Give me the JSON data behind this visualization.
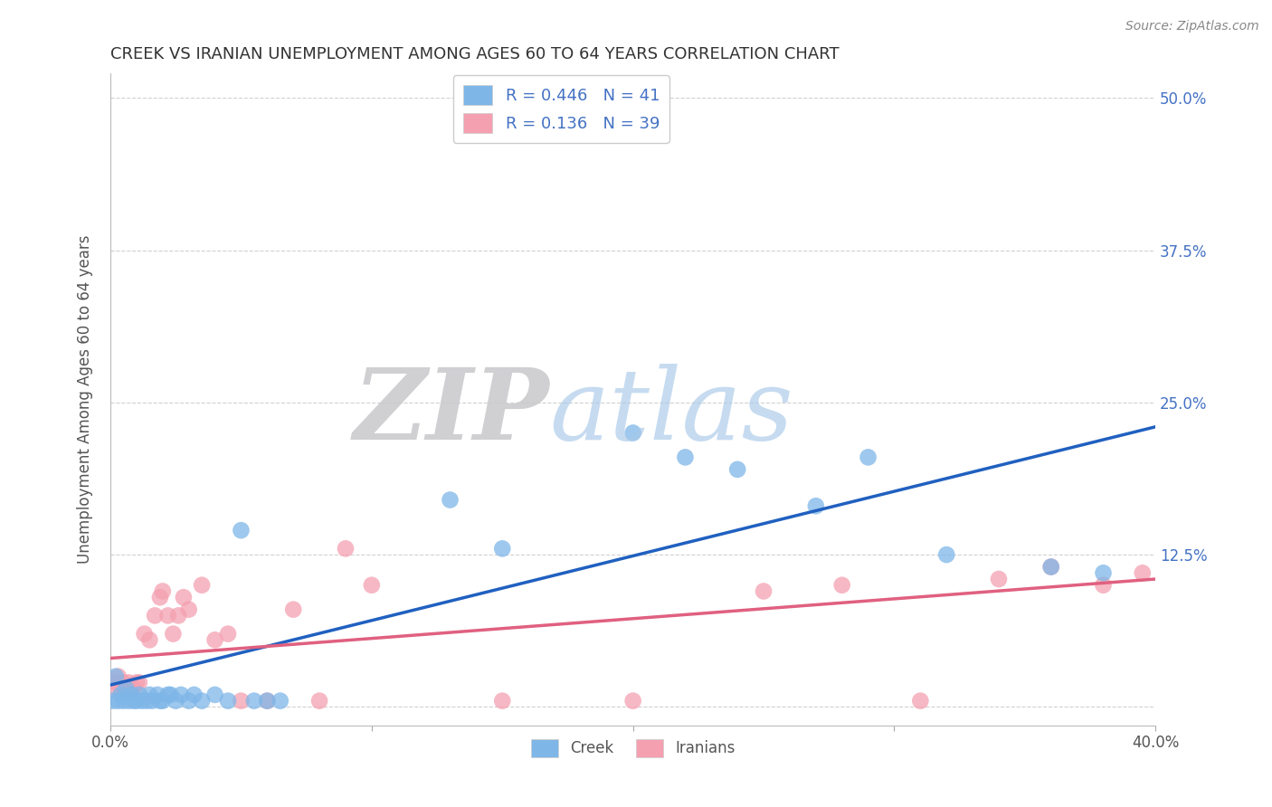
{
  "title": "CREEK VS IRANIAN UNEMPLOYMENT AMONG AGES 60 TO 64 YEARS CORRELATION CHART",
  "source": "Source: ZipAtlas.com",
  "ylabel": "Unemployment Among Ages 60 to 64 years",
  "xlim": [
    0,
    0.4
  ],
  "ylim": [
    -0.015,
    0.52
  ],
  "xticks": [
    0.0,
    0.1,
    0.2,
    0.3,
    0.4
  ],
  "yticks": [
    0.0,
    0.125,
    0.25,
    0.375,
    0.5
  ],
  "xticklabels": [
    "0.0%",
    "",
    "",
    "",
    "40.0%"
  ],
  "yticklabels": [
    "",
    "12.5%",
    "25.0%",
    "37.5%",
    "50.0%"
  ],
  "creek_color": "#7EB6E8",
  "iranian_color": "#F4A0B0",
  "creek_line_color": "#2060C0",
  "iranian_line_color": "#E06080",
  "creek_R": 0.446,
  "creek_N": 41,
  "iranian_R": 0.136,
  "iranian_N": 39,
  "background_color": "#ffffff",
  "grid_color": "#cccccc",
  "creek_x": [
    0.001,
    0.002,
    0.003,
    0.004,
    0.005,
    0.006,
    0.007,
    0.008,
    0.009,
    0.01,
    0.011,
    0.012,
    0.014,
    0.015,
    0.016,
    0.018,
    0.019,
    0.02,
    0.022,
    0.023,
    0.025,
    0.027,
    0.03,
    0.032,
    0.035,
    0.04,
    0.045,
    0.05,
    0.055,
    0.06,
    0.065,
    0.13,
    0.15,
    0.2,
    0.22,
    0.24,
    0.27,
    0.29,
    0.32,
    0.36,
    0.38
  ],
  "creek_y": [
    0.005,
    0.025,
    0.005,
    0.01,
    0.005,
    0.015,
    0.005,
    0.01,
    0.005,
    0.005,
    0.01,
    0.005,
    0.005,
    0.01,
    0.005,
    0.01,
    0.005,
    0.005,
    0.01,
    0.01,
    0.005,
    0.01,
    0.005,
    0.01,
    0.005,
    0.01,
    0.005,
    0.145,
    0.005,
    0.005,
    0.005,
    0.17,
    0.13,
    0.225,
    0.205,
    0.195,
    0.165,
    0.205,
    0.125,
    0.115,
    0.11
  ],
  "iranian_x": [
    0.001,
    0.002,
    0.003,
    0.004,
    0.005,
    0.006,
    0.007,
    0.008,
    0.009,
    0.01,
    0.011,
    0.013,
    0.015,
    0.017,
    0.019,
    0.02,
    0.022,
    0.024,
    0.026,
    0.028,
    0.03,
    0.035,
    0.04,
    0.045,
    0.05,
    0.06,
    0.07,
    0.08,
    0.09,
    0.1,
    0.15,
    0.2,
    0.25,
    0.28,
    0.31,
    0.34,
    0.36,
    0.38,
    0.395
  ],
  "iranian_y": [
    0.015,
    0.02,
    0.025,
    0.015,
    0.02,
    0.015,
    0.02,
    0.01,
    0.015,
    0.02,
    0.02,
    0.06,
    0.055,
    0.075,
    0.09,
    0.095,
    0.075,
    0.06,
    0.075,
    0.09,
    0.08,
    0.1,
    0.055,
    0.06,
    0.005,
    0.005,
    0.08,
    0.005,
    0.13,
    0.1,
    0.005,
    0.005,
    0.095,
    0.1,
    0.005,
    0.105,
    0.115,
    0.1,
    0.11
  ],
  "creek_line_x0": 0.0,
  "creek_line_y0": 0.018,
  "creek_line_x1": 0.4,
  "creek_line_y1": 0.23,
  "iranian_line_x0": 0.0,
  "iranian_line_y0": 0.04,
  "iranian_line_x1": 0.4,
  "iranian_line_y1": 0.105
}
